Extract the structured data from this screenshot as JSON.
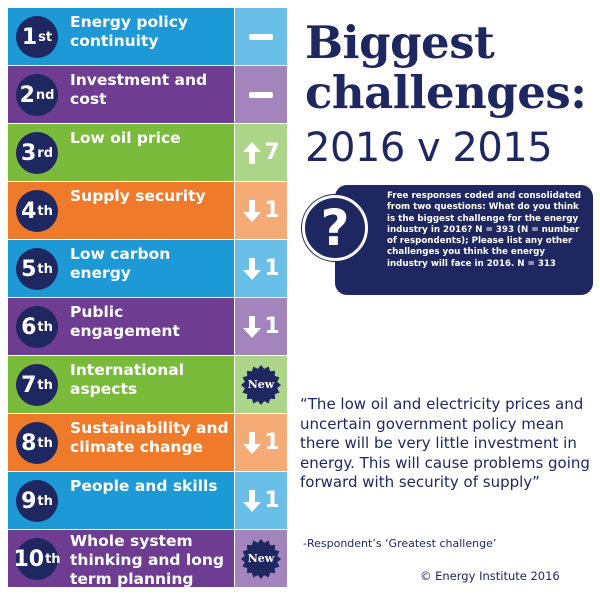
{
  "title": {
    "line1": "Biggest",
    "line2": "challenges:",
    "line3": "2016 v 2015"
  },
  "rows": [
    {
      "rank": "1",
      "suffix": "st",
      "label": "Energy policy continuity",
      "change_type": "same",
      "change_text": "",
      "color": "blue"
    },
    {
      "rank": "2",
      "suffix": "nd",
      "label": "Investment and cost",
      "change_type": "same",
      "change_text": "",
      "color": "purple"
    },
    {
      "rank": "3",
      "suffix": "rd",
      "label": "Low oil price",
      "change_type": "up",
      "change_text": "7",
      "color": "green"
    },
    {
      "rank": "4",
      "suffix": "th",
      "label": "Supply security",
      "change_type": "down",
      "change_text": "1",
      "color": "orange"
    },
    {
      "rank": "5",
      "suffix": "th",
      "label": "Low carbon energy",
      "change_type": "down",
      "change_text": "1",
      "color": "blue"
    },
    {
      "rank": "6",
      "suffix": "th",
      "label": "Public engagement",
      "change_type": "down",
      "change_text": "1",
      "color": "purple"
    },
    {
      "rank": "7",
      "suffix": "th",
      "label": "International aspects",
      "change_type": "new",
      "change_text": "New",
      "color": "green"
    },
    {
      "rank": "8",
      "suffix": "th",
      "label": "Sustainability and climate change",
      "change_type": "down",
      "change_text": "1",
      "color": "orange"
    },
    {
      "rank": "9",
      "suffix": "th",
      "label": "People and skills",
      "change_type": "down",
      "change_text": "1",
      "color": "blue"
    },
    {
      "rank": "10",
      "suffix": "th",
      "label": "Whole system thinking and long term planning",
      "change_type": "new",
      "change_text": "New",
      "color": "purple"
    }
  ],
  "question_box": {
    "icon": "?",
    "text": "Free responses coded and consolidated from two questions: What do you think is the biggest challenge for the energy industry in 2016? N = 393 (N = number of respondents); Please list any other challenges you think the energy industry will face in 2016. N = 313"
  },
  "quote": "“The low oil and electricity prices and uncertain government policy mean there will be very little investment in energy. This will cause problems going forward with security of supply”",
  "attribution": "-Respondent’s ‘Greatest challenge’",
  "copyright": "© Energy Institute 2016",
  "colors": {
    "navy": "#1f2761",
    "blue": "#1d9ad6",
    "purple": "#6e3d92",
    "green": "#7bbb3c",
    "orange": "#ef7a2a"
  }
}
